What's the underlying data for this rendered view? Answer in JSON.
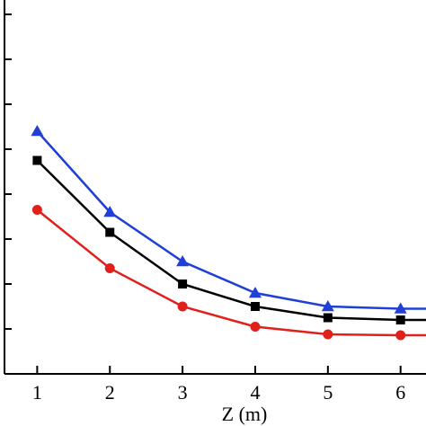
{
  "chart_data": {
    "type": "line",
    "xlabel": "Z (m)",
    "ylabel": "",
    "xlim": [
      0.55,
      6.35
    ],
    "ylim": [
      0.0,
      8.0
    ],
    "x_ticks": [
      "1",
      "2",
      "3",
      "4",
      "5",
      "6"
    ],
    "y_tick_values": [
      0,
      1,
      2,
      3,
      4,
      5,
      6,
      7,
      8
    ],
    "grid": false,
    "legend": "none",
    "series": [
      {
        "marker": "triangle",
        "color": "#1f3fd6",
        "x": [
          1,
          2,
          3,
          4,
          5,
          6,
          6.35
        ],
        "values": [
          5.4,
          3.6,
          2.5,
          1.8,
          1.5,
          1.45,
          1.45
        ]
      },
      {
        "marker": "square",
        "color": "#000000",
        "x": [
          1,
          2,
          3,
          4,
          5,
          6,
          6.35
        ],
        "values": [
          4.75,
          3.15,
          2.0,
          1.5,
          1.25,
          1.2,
          1.2
        ]
      },
      {
        "marker": "circle",
        "color": "#e0201b",
        "x": [
          1,
          2,
          3,
          4,
          5,
          6,
          6.35
        ],
        "values": [
          3.65,
          2.35,
          1.5,
          1.05,
          0.88,
          0.86,
          0.86
        ]
      }
    ]
  }
}
